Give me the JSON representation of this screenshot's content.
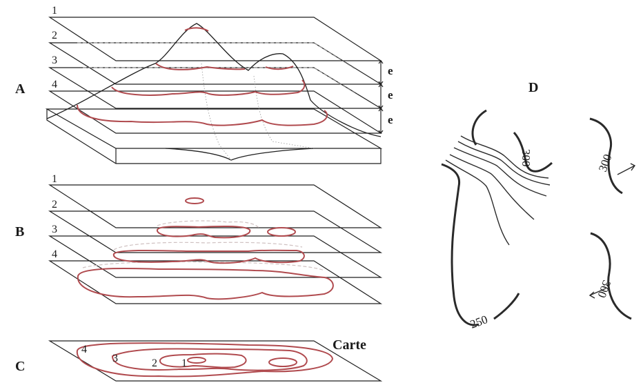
{
  "panels": {
    "A": "A",
    "B": "B",
    "C": "C",
    "D": "D"
  },
  "levels_a": [
    "1",
    "2",
    "3",
    "4"
  ],
  "levels_b": [
    "1",
    "2",
    "3",
    "4"
  ],
  "levels_c": [
    "4",
    "3",
    "2",
    "1"
  ],
  "equidistance": [
    "e",
    "e",
    "e"
  ],
  "map_label": "Carte",
  "contour_values_d": [
    "300",
    "250",
    "300",
    "300"
  ]
}
